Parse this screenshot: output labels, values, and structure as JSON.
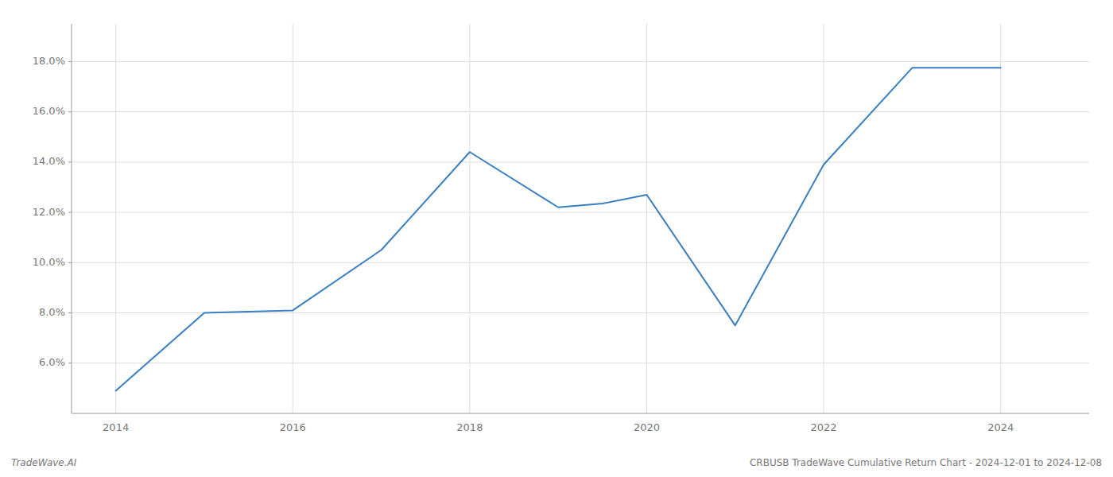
{
  "chart_data": {
    "type": "line",
    "x": [
      2014,
      2015,
      2015.5,
      2016,
      2017,
      2018,
      2019,
      2019.5,
      2020,
      2021,
      2022,
      2023,
      2023.5,
      2024
    ],
    "values": [
      4.9,
      8.0,
      8.05,
      8.1,
      10.5,
      14.4,
      12.2,
      12.35,
      12.7,
      7.5,
      13.9,
      17.75,
      17.75,
      17.75
    ],
    "color": "#3a7fc1",
    "xlim": [
      2013.5,
      2025.0
    ],
    "ylim": [
      4.0,
      19.5
    ],
    "xticks": [
      2014,
      2016,
      2018,
      2020,
      2022,
      2024
    ],
    "yticks": [
      {
        "value": 6.0,
        "label": "6.0%"
      },
      {
        "value": 8.0,
        "label": "8.0%"
      },
      {
        "value": 10.0,
        "label": "10.0%"
      },
      {
        "value": 12.0,
        "label": "12.0%"
      },
      {
        "value": 14.0,
        "label": "14.0%"
      },
      {
        "value": 16.0,
        "label": "16.0%"
      },
      {
        "value": 18.0,
        "label": "18.0%"
      }
    ],
    "grid": true,
    "annotations": [
      "TradeWave.AI",
      "CRBUSB TradeWave Cumulative Return Chart - 2024-12-01 to 2024-12-08"
    ]
  }
}
